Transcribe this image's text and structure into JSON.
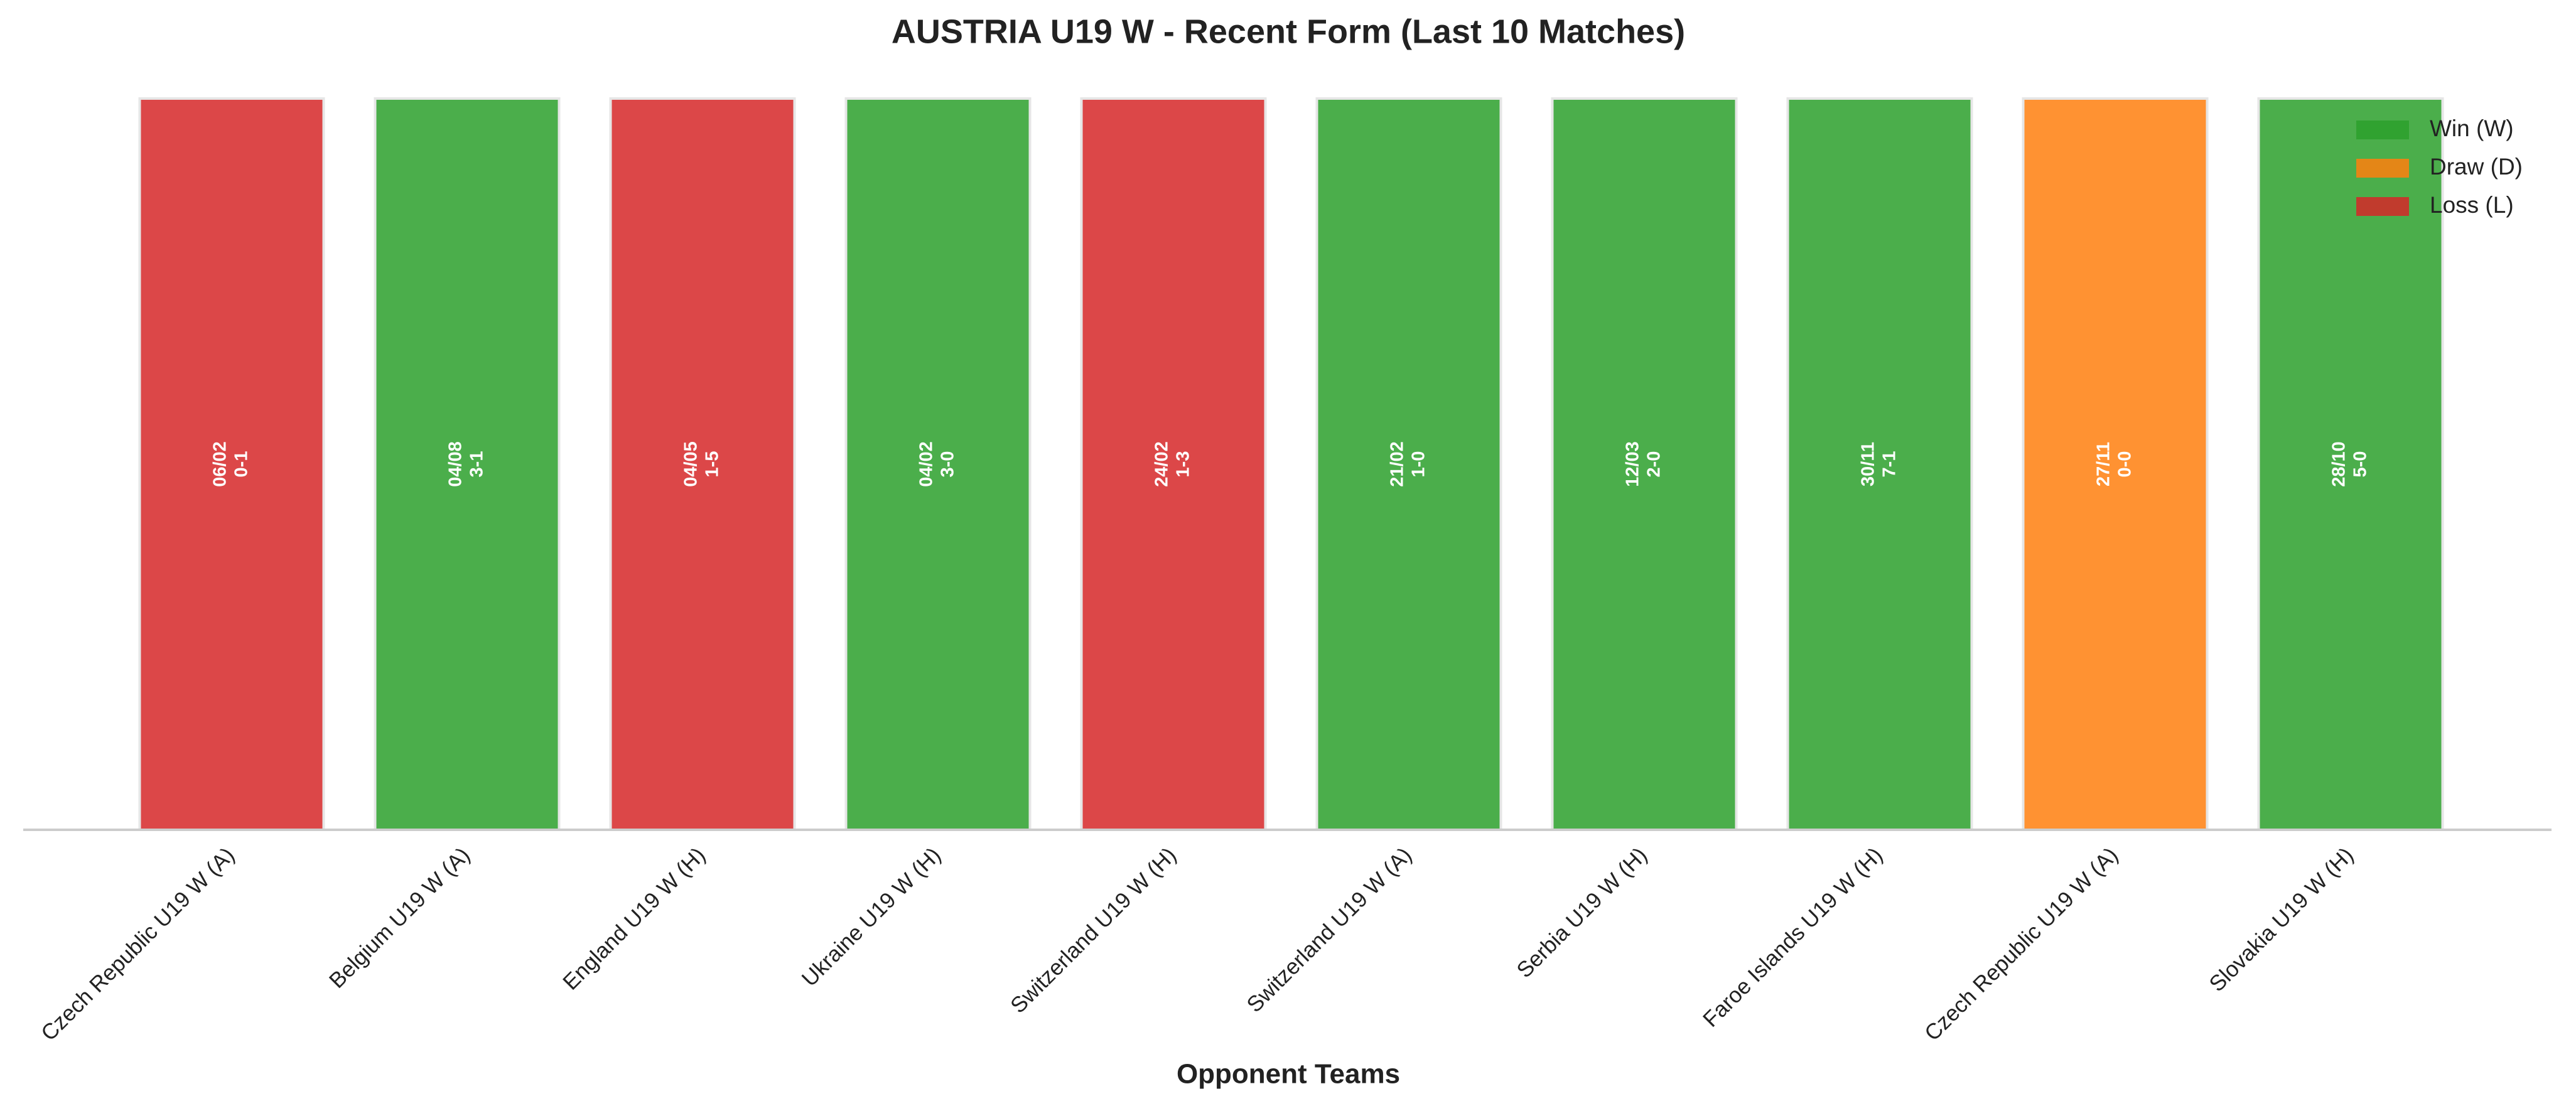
{
  "chart_data": {
    "type": "bar",
    "title": "AUSTRIA U19 W - Recent Form (Last 10 Matches)",
    "x_label": "Opponent Teams",
    "categories": [
      "Czech Republic U19 W (A)",
      "Belgium U19 W (A)",
      "England U19 W (H)",
      "Ukraine U19 W (H)",
      "Switzerland U19 W (H)",
      "Switzerland U19 W (A)",
      "Serbia U19 W (H)",
      "Faroe Islands U19 W (H)",
      "Czech Republic U19 W (A)",
      "Slovakia U19 W (H)"
    ],
    "values": [
      1,
      1,
      1,
      1,
      1,
      1,
      1,
      1,
      1,
      1
    ],
    "dates": [
      "06/02",
      "04/08",
      "04/05",
      "04/02",
      "24/02",
      "21/02",
      "12/03",
      "30/11",
      "27/11",
      "28/10"
    ],
    "scores": [
      "0-1",
      "3-1",
      "1-5",
      "3-0",
      "1-3",
      "1-0",
      "2-0",
      "7-1",
      "0-0",
      "5-0"
    ],
    "colors": [
      "#d62728",
      "#2ca02c",
      "#d62728",
      "#2ca02c",
      "#d62728",
      "#2ca02c",
      "#2ca02c",
      "#2ca02c",
      "#ff7f0e",
      "#2ca02c"
    ],
    "ylim": [
      0,
      1
    ],
    "legend_position": "upper right",
    "legend": [
      {
        "label": "Win (W)",
        "color": "#2ca02c"
      },
      {
        "label": "Draw (D)",
        "color": "#ff7f0e"
      },
      {
        "label": "Loss (L)",
        "color": "#d62728"
      }
    ]
  }
}
